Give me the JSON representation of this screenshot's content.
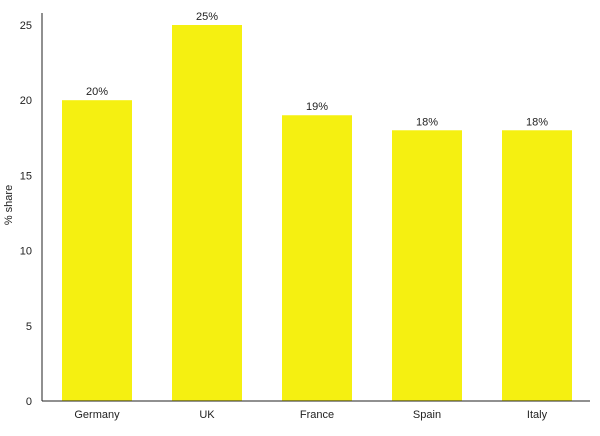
{
  "chart_data": {
    "type": "bar",
    "title": "",
    "xlabel": "",
    "ylabel": "% share",
    "categories": [
      "Germany",
      "UK",
      "France",
      "Spain",
      "Italy"
    ],
    "values": [
      20,
      25,
      19,
      18,
      18
    ],
    "data_labels": [
      "20%",
      "25%",
      "19%",
      "18%",
      "18%"
    ],
    "ylim": [
      0,
      25
    ],
    "yticks": [
      0,
      5,
      10,
      15,
      20,
      25
    ],
    "grid": false,
    "legend": "none",
    "bar_color": "#f5f011",
    "axis_color": "#222222"
  }
}
